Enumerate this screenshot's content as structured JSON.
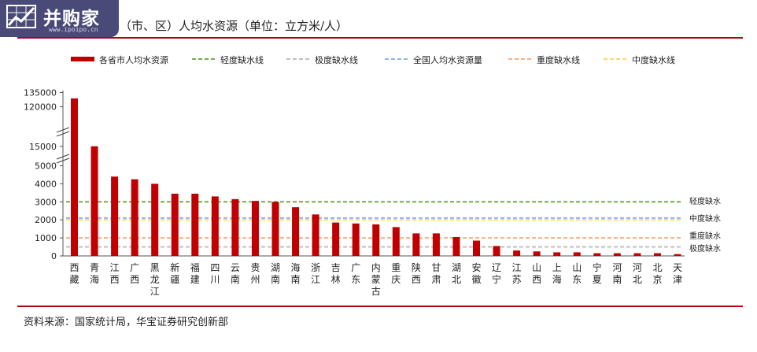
{
  "logo": {
    "brand": "并购家",
    "url": "www.ipoipo.cn",
    "icon": "chart-logo-icon"
  },
  "header": {
    "title": "（市、区）人均水资源（单位：立方米/人）"
  },
  "footer": {
    "source": "资料来源：国家统计局，华宝证券研究创新部"
  },
  "colors": {
    "bars": "#c00000",
    "mild": "#70ad47",
    "extreme": "#bfbfbf",
    "national": "#8eb4e3",
    "severe": "#f4b183",
    "moderate": "#ffd966",
    "rule": "#b3000b"
  },
  "chart_data": {
    "type": "bar",
    "categories": [
      "西藏",
      "青海",
      "江西",
      "广西",
      "黑龙江",
      "新疆",
      "福建",
      "四川",
      "云南",
      "贵州",
      "湖南",
      "海南",
      "浙江",
      "吉林",
      "广东",
      "内蒙古",
      "重庆",
      "陕西",
      "甘肃",
      "湖北",
      "安徽",
      "辽宁",
      "江苏",
      "山西",
      "上海",
      "山东",
      "宁夏",
      "河南",
      "河北",
      "北京",
      "天津"
    ],
    "series": [
      {
        "name": "各省市人均水资源",
        "values": [
          130000,
          15500,
          4400,
          4250,
          4000,
          3450,
          3450,
          3300,
          3150,
          3050,
          3000,
          2700,
          2300,
          1850,
          1800,
          1750,
          1600,
          1250,
          1250,
          1050,
          850,
          550,
          300,
          250,
          200,
          200,
          150,
          150,
          150,
          150,
          100
        ]
      }
    ],
    "reference_lines": [
      {
        "name": "轻度缺水线",
        "value": 3000,
        "label": "轻度缺水"
      },
      {
        "name": "极度缺水线",
        "value": 500,
        "label": "极度缺水"
      },
      {
        "name": "全国人均水资源量",
        "value": 2100,
        "label": ""
      },
      {
        "name": "重度缺水线",
        "value": 1000,
        "label": "重度缺水"
      },
      {
        "name": "中度缺水线",
        "value": 2000,
        "label": "中度缺水"
      }
    ],
    "legend": [
      "各省市人均水资源",
      "轻度缺水线",
      "极度缺水线",
      "全国人均水资源量",
      "重度缺水线",
      "中度缺水线"
    ],
    "y_ticks": [
      "0",
      "1000",
      "2000",
      "3000",
      "4000",
      "5000",
      "15000",
      "120000",
      "135000"
    ],
    "axis_breaks": [
      "5000-15000",
      "15000-120000"
    ],
    "legend_position": "top",
    "grid": false
  }
}
